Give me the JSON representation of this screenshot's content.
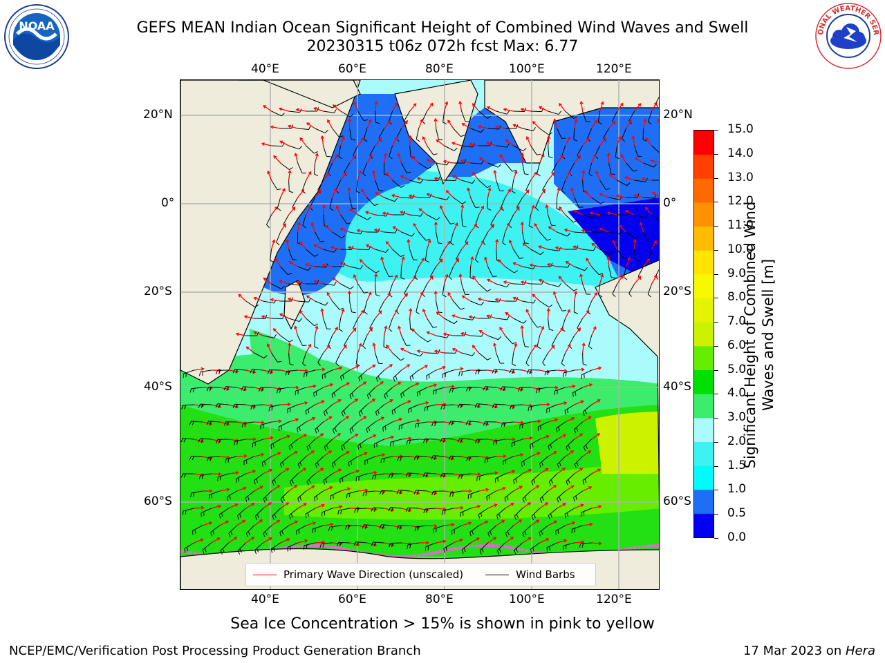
{
  "header": {
    "title_line1": "GEFS MEAN Indian Ocean Significant Height of Combined Wind Waves and Swell",
    "title_line2": "20230315 t06z 072h fcst   Max: 6.77"
  },
  "logos": {
    "noaa": {
      "text": "NOAA",
      "ring_text": "NATIONAL OCEANIC AND ATMOSPHERIC ADMINISTRATION · U.S. DEPARTMENT OF COMMERCE"
    },
    "nws": {
      "ring_text": "NATIONAL WEATHER SERVICE"
    }
  },
  "map": {
    "lon_ticks": [
      {
        "label": "40°E",
        "value": 40
      },
      {
        "label": "60°E",
        "value": 60
      },
      {
        "label": "80°E",
        "value": 80
      },
      {
        "label": "100°E",
        "value": 100
      },
      {
        "label": "120°E",
        "value": 120
      }
    ],
    "lat_ticks": [
      {
        "label": "20°N",
        "value": 20
      },
      {
        "label": "0°",
        "value": 0
      },
      {
        "label": "20°S",
        "value": -20
      },
      {
        "label": "40°S",
        "value": -40
      },
      {
        "label": "60°S",
        "value": -60
      }
    ],
    "colors": {
      "land": "#efecdc",
      "ocean_light": "#aafbfb",
      "ocean_mid": "#3ff2f2",
      "ocean_blue": "#1e6ff5",
      "ocean_deep": "#0000f0",
      "green_light": "#3cec6c",
      "green": "#22e013",
      "green_bright": "#66ee00",
      "yellow_green": "#ccf200",
      "ice_pink": "#f060e0",
      "arrow": "#ff0000",
      "barb": "#000000",
      "grid": "#b0b0b0"
    },
    "legend": {
      "wave_label": "Primary Wave Direction (unscaled)",
      "barb_label": "Wind Barbs"
    },
    "note": "Sea Ice Concentration > 15% is shown in pink to yellow"
  },
  "colorbar": {
    "label": "Significant Height of Combined Wind Waves and Swell [m]",
    "bins": [
      {
        "lo": 0.0,
        "hi": 0.5,
        "color": "#0000f0"
      },
      {
        "lo": 0.5,
        "hi": 1.0,
        "color": "#1e6ff5"
      },
      {
        "lo": 1.0,
        "hi": 1.5,
        "color": "#00fbfb"
      },
      {
        "lo": 1.5,
        "hi": 2.0,
        "color": "#3ff2f2"
      },
      {
        "lo": 2.0,
        "hi": 3.0,
        "color": "#aafbfb"
      },
      {
        "lo": 3.0,
        "hi": 4.0,
        "color": "#3cec6c"
      },
      {
        "lo": 4.0,
        "hi": 5.0,
        "color": "#00e000"
      },
      {
        "lo": 5.0,
        "hi": 6.0,
        "color": "#66ee00"
      },
      {
        "lo": 6.0,
        "hi": 7.0,
        "color": "#ccf200"
      },
      {
        "lo": 7.0,
        "hi": 8.0,
        "color": "#e4f400"
      },
      {
        "lo": 8.0,
        "hi": 9.0,
        "color": "#f8f800"
      },
      {
        "lo": 9.0,
        "hi": 10.0,
        "color": "#ffe400"
      },
      {
        "lo": 10.0,
        "hi": 11.0,
        "color": "#ffbc00"
      },
      {
        "lo": 11.0,
        "hi": 12.0,
        "color": "#ff9200"
      },
      {
        "lo": 12.0,
        "hi": 13.0,
        "color": "#ff6a00"
      },
      {
        "lo": 13.0,
        "hi": 14.0,
        "color": "#ff4000"
      },
      {
        "lo": 14.0,
        "hi": 15.0,
        "color": "#ff0000"
      }
    ],
    "tick_labels": [
      "0.0",
      "0.5",
      "1.0",
      "1.5",
      "2.0",
      "3.0",
      "4.0",
      "5.0",
      "6.0",
      "7.0",
      "8.0",
      "9.0",
      "10.0",
      "11.0",
      "12.0",
      "13.0",
      "14.0",
      "15.0"
    ]
  },
  "footer": {
    "left": "NCEP/EMC/Verification Post Processing Product Generation Branch",
    "right_prefix": "17 Mar 2023 on ",
    "right_host": "Hera"
  }
}
